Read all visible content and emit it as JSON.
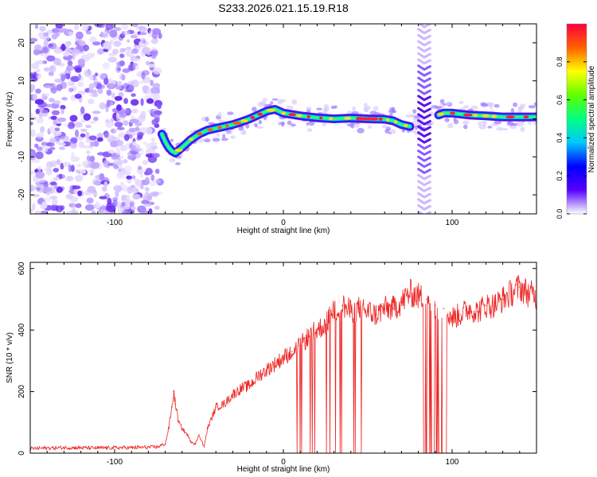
{
  "title": "S233.2026.021.15.19.R18",
  "chart_data": [
    {
      "type": "heatmap",
      "name": "spectrogram",
      "title": "S233.2026.021.15.19.R18",
      "xlabel": "Height of straight line (km)",
      "ylabel": "Frequency (Hz)",
      "xlim": [
        -150,
        150
      ],
      "ylim": [
        -25,
        25
      ],
      "xticks": [
        -100,
        0,
        100
      ],
      "xtick_labels": [
        "-100",
        "0",
        "100"
      ],
      "yticks": [
        -20,
        -10,
        0,
        10,
        20
      ],
      "ytick_labels": [
        "-20",
        "-10",
        "0",
        "10",
        "20"
      ],
      "colorbar": {
        "label": "Normalized spectral amplitude",
        "range": [
          0,
          1
        ],
        "ticks": [
          0.0,
          0.2,
          0.4,
          0.6,
          0.8
        ],
        "tick_labels": [
          "0.0",
          "0.2",
          "0.4",
          "0.6",
          "0.8"
        ],
        "colors": [
          "#ffffff",
          "#5500ff",
          "#0000ff",
          "#00c8ff",
          "#00ff80",
          "#60ff00",
          "#ffff00",
          "#ff6000",
          "#ff0040"
        ]
      },
      "ridge": {
        "x": [
          -72,
          -70,
          -68,
          -66,
          -64,
          -60,
          -55,
          -50,
          -45,
          -40,
          -35,
          -30,
          -25,
          -20,
          -15,
          -10,
          -5,
          0,
          10,
          20,
          30,
          40,
          50,
          60,
          65,
          70,
          75,
          78,
          82,
          86,
          90,
          92,
          95,
          100,
          110,
          120,
          130,
          140,
          150
        ],
        "y": [
          -4.0,
          -6.0,
          -7.5,
          -8.5,
          -9.0,
          -7.5,
          -5.5,
          -4.0,
          -3.0,
          -2.5,
          -2.0,
          -1.5,
          -0.8,
          0.0,
          1.0,
          2.0,
          2.5,
          1.5,
          0.8,
          0.3,
          0.0,
          0.2,
          0.0,
          -0.1,
          -0.5,
          -1.5,
          -2.0,
          -1.0,
          -1.5,
          -0.5,
          0.5,
          1.0,
          1.5,
          1.5,
          1.0,
          0.8,
          0.5,
          0.5,
          0.5
        ]
      },
      "noise_region_x": [
        -150,
        -73
      ],
      "artifact_region_x": [
        77,
        88
      ]
    },
    {
      "type": "line",
      "name": "snr",
      "xlabel": "Height of straight line (km)",
      "ylabel": "SNR (10 * v/v)",
      "xlim": [
        -150,
        150
      ],
      "ylim": [
        0,
        620
      ],
      "xticks": [
        -100,
        0,
        100
      ],
      "xtick_labels": [
        "-100",
        "0",
        "100"
      ],
      "yticks": [
        0,
        200,
        400,
        600
      ],
      "ytick_labels": [
        "0",
        "200",
        "400",
        "600"
      ],
      "series": [
        {
          "name": "SNR",
          "color": "#ee2222",
          "x": [
            -150,
            -130,
            -110,
            -90,
            -75,
            -70,
            -68,
            -66,
            -65,
            -64,
            -62,
            -60,
            -57,
            -55,
            -52,
            -50,
            -47,
            -45,
            -42,
            -40,
            -35,
            -30,
            -25,
            -20,
            -15,
            -10,
            -5,
            0,
            5,
            10,
            15,
            20,
            25,
            30,
            35,
            40,
            45,
            50,
            55,
            60,
            65,
            70,
            75,
            80,
            85,
            90,
            95,
            100,
            105,
            110,
            115,
            120,
            125,
            130,
            135,
            140,
            145,
            150
          ],
          "y": [
            15,
            18,
            17,
            18,
            20,
            30,
            80,
            150,
            200,
            160,
            100,
            80,
            60,
            40,
            30,
            60,
            20,
            80,
            120,
            150,
            160,
            190,
            210,
            220,
            250,
            270,
            290,
            310,
            330,
            350,
            380,
            400,
            420,
            460,
            480,
            460,
            470,
            460,
            450,
            470,
            470,
            490,
            520,
            510,
            500,
            480,
            470,
            440,
            450,
            470,
            460,
            480,
            480,
            500,
            520,
            540,
            520,
            510
          ]
        }
      ],
      "dropouts": [
        {
          "start": 5,
          "end": 50
        },
        {
          "start": 83,
          "end": 97
        }
      ]
    }
  ]
}
